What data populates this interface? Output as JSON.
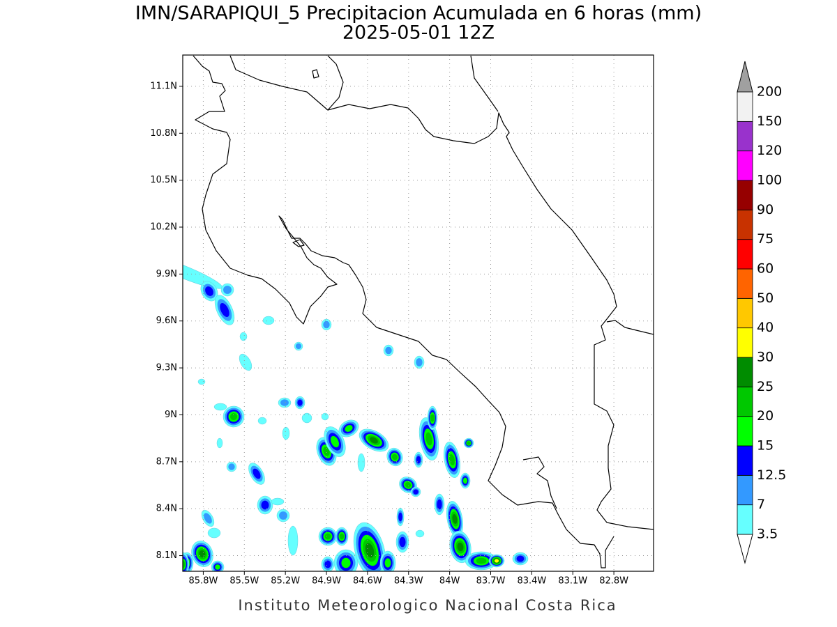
{
  "title": "IMN/SARAPIQUI_5 Precipitacion Acumulada en 6 horas (mm)",
  "subtitle": "2025-05-01 12Z",
  "map": {
    "xlim": [
      -85.95,
      -82.51
    ],
    "ylim": [
      8.0,
      11.3
    ],
    "xticks": [
      {
        "value": -85.8,
        "label": "85.8W"
      },
      {
        "value": -85.5,
        "label": "85.5W"
      },
      {
        "value": -85.2,
        "label": "85.2W"
      },
      {
        "value": -84.9,
        "label": "84.9W"
      },
      {
        "value": -84.6,
        "label": "84.6W"
      },
      {
        "value": -84.3,
        "label": "84.3W"
      },
      {
        "value": -84.0,
        "label": "84W"
      },
      {
        "value": -83.7,
        "label": "83.7W"
      },
      {
        "value": -83.4,
        "label": "83.4W"
      },
      {
        "value": -83.1,
        "label": "83.1W"
      },
      {
        "value": -82.8,
        "label": "82.8W"
      }
    ],
    "yticks": [
      {
        "value": 8.1,
        "label": "8.1N"
      },
      {
        "value": 8.4,
        "label": "8.4N"
      },
      {
        "value": 8.7,
        "label": "8.7N"
      },
      {
        "value": 9.0,
        "label": "9N"
      },
      {
        "value": 9.3,
        "label": "9.3N"
      },
      {
        "value": 9.6,
        "label": "9.6N"
      },
      {
        "value": 9.9,
        "label": "9.9N"
      },
      {
        "value": 10.2,
        "label": "10.2N"
      },
      {
        "value": 10.5,
        "label": "10.5N"
      },
      {
        "value": 10.8,
        "label": "10.8N"
      },
      {
        "value": 11.1,
        "label": "11.1N"
      }
    ],
    "grid": true
  },
  "colorbar": {
    "levels": [
      3.5,
      7,
      12.5,
      15,
      20,
      25,
      30,
      40,
      50,
      60,
      75,
      90,
      100,
      120,
      150,
      200
    ],
    "colors": [
      "#66ffff",
      "#3399ff",
      "#0000ff",
      "#00ff00",
      "#00c800",
      "#008c00",
      "#ffff00",
      "#ffc800",
      "#ff6400",
      "#ff0000",
      "#c83200",
      "#960000",
      "#ff00ff",
      "#9932cc",
      "#f2f2f2"
    ],
    "under_color": "#ffffff",
    "over_color": "#a0a0a0"
  },
  "footer": "Instituto Meteorologico Nacional Costa Rica"
}
